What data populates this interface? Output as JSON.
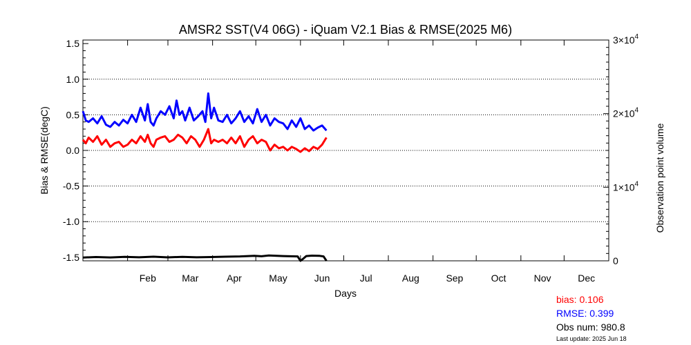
{
  "chart_data": {
    "type": "line",
    "title": "AMSR2 SST(V4 06G) - iQuam V2.1 Bias & RMSE(2025 M6)",
    "xlabel": "Days",
    "ylabel": "Bias & RMSE(degC)",
    "y2label": "Observation point volume",
    "x_ticks": [
      "Feb",
      "Mar",
      "Apr",
      "May",
      "Jun",
      "Jul",
      "Aug",
      "Sep",
      "Oct",
      "Nov",
      "Dec"
    ],
    "xlim": [
      1,
      366
    ],
    "ylim": [
      -1.55,
      1.55
    ],
    "y_ticks": [
      "1.5",
      "1.0",
      "0.5",
      "0.0",
      "-0.5",
      "-1.0",
      "-1.5"
    ],
    "y_tick_values": [
      1.5,
      1.0,
      0.5,
      0.0,
      -0.5,
      -1.0,
      -1.5
    ],
    "y2lim": [
      0,
      30000
    ],
    "y2_ticks": [
      {
        "value": 30000,
        "mantissa": "3",
        "exp": "4"
      },
      {
        "value": 20000,
        "mantissa": "2",
        "exp": "4"
      },
      {
        "value": 10000,
        "mantissa": "1",
        "exp": "4"
      },
      {
        "value": 0,
        "mantissa": "0",
        "exp": ""
      }
    ],
    "y2_tick_sep": "×10",
    "grid": "horizontal dotted",
    "series": [
      {
        "color": "#0000ff",
        "axis": "left",
        "x": [
          1,
          3,
          5,
          8,
          11,
          14,
          17,
          20,
          23,
          26,
          29,
          32,
          35,
          38,
          41,
          44,
          46,
          48,
          50,
          52,
          55,
          58,
          61,
          64,
          66,
          68,
          70,
          72,
          75,
          78,
          81,
          84,
          86,
          88,
          90,
          92,
          95,
          98,
          101,
          104,
          107,
          110,
          113,
          116,
          119,
          122,
          125,
          128,
          131,
          134,
          137,
          140,
          143,
          146,
          149,
          152,
          155,
          158,
          161,
          164,
          167,
          170
        ],
        "y": [
          0.55,
          0.42,
          0.4,
          0.45,
          0.38,
          0.48,
          0.36,
          0.33,
          0.4,
          0.35,
          0.43,
          0.38,
          0.5,
          0.4,
          0.6,
          0.42,
          0.65,
          0.4,
          0.35,
          0.45,
          0.55,
          0.5,
          0.62,
          0.45,
          0.7,
          0.5,
          0.55,
          0.42,
          0.6,
          0.42,
          0.48,
          0.55,
          0.4,
          0.8,
          0.45,
          0.6,
          0.42,
          0.4,
          0.5,
          0.38,
          0.45,
          0.55,
          0.4,
          0.48,
          0.38,
          0.58,
          0.4,
          0.5,
          0.35,
          0.45,
          0.4,
          0.38,
          0.3,
          0.42,
          0.33,
          0.45,
          0.3,
          0.35,
          0.28,
          0.32,
          0.35,
          0.28
        ]
      },
      {
        "color": "#ff0000",
        "axis": "left",
        "x": [
          1,
          3,
          5,
          8,
          11,
          14,
          17,
          20,
          23,
          26,
          29,
          32,
          35,
          38,
          41,
          44,
          46,
          48,
          50,
          52,
          55,
          58,
          61,
          64,
          67,
          70,
          73,
          76,
          79,
          82,
          85,
          88,
          90,
          92,
          95,
          98,
          101,
          104,
          107,
          110,
          113,
          116,
          119,
          122,
          125,
          128,
          131,
          134,
          137,
          140,
          143,
          146,
          149,
          152,
          155,
          158,
          161,
          164,
          167,
          170
        ],
        "y": [
          0.15,
          0.1,
          0.18,
          0.12,
          0.2,
          0.08,
          0.15,
          0.05,
          0.1,
          0.12,
          0.05,
          0.08,
          0.15,
          0.1,
          0.2,
          0.12,
          0.22,
          0.1,
          0.05,
          0.15,
          0.18,
          0.2,
          0.12,
          0.15,
          0.22,
          0.18,
          0.1,
          0.2,
          0.15,
          0.05,
          0.15,
          0.3,
          0.1,
          0.15,
          0.12,
          0.15,
          0.1,
          0.18,
          0.1,
          0.2,
          0.05,
          0.15,
          0.2,
          0.1,
          0.15,
          0.12,
          0.0,
          0.08,
          0.03,
          0.05,
          0.0,
          0.05,
          0.02,
          -0.02,
          0.03,
          -0.01,
          0.05,
          0.02,
          0.08,
          0.18
        ]
      },
      {
        "color": "#000000",
        "axis": "right",
        "x": [
          1,
          10,
          20,
          30,
          40,
          50,
          60,
          70,
          80,
          90,
          100,
          110,
          120,
          125,
          130,
          140,
          150,
          152,
          154,
          156,
          160,
          165,
          168,
          170
        ],
        "y": [
          450,
          520,
          460,
          540,
          480,
          560,
          470,
          540,
          480,
          520,
          560,
          600,
          680,
          620,
          720,
          650,
          600,
          0,
          300,
          650,
          700,
          680,
          600,
          0
        ]
      }
    ]
  },
  "stats": {
    "bias": "bias: 0.106",
    "rmse": "RMSE: 0.399",
    "obs": "Obs num:  980.8",
    "update": "Last update: 2025 Jun 18"
  }
}
